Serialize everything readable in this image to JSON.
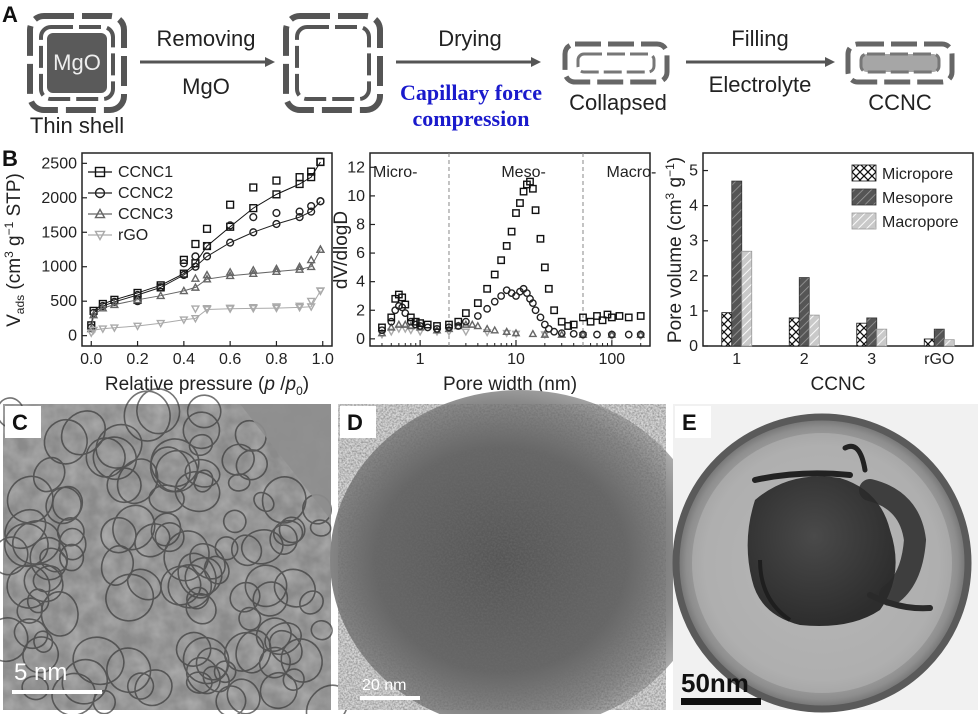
{
  "panel_labels": {
    "a": "A",
    "b": "B",
    "c": "C",
    "d": "D",
    "e": "E"
  },
  "scheme": {
    "mgo": "MgO",
    "thin_shell": "Thin shell",
    "step1_top": "Removing",
    "step1_bottom": "MgO",
    "step2_top": "Drying",
    "step2_blue1": "Capillary force",
    "step2_blue2": "compression",
    "collapsed": "Collapsed",
    "step3_top": "Filling",
    "step3_bottom": "Electrolyte",
    "ccnc": "CCNC"
  },
  "tem": {
    "c_scale": "5 nm",
    "d_scale": "20 nm",
    "e_scale": "50nm"
  },
  "chart_data": [
    {
      "type": "line",
      "title": "",
      "xlabel": "Relative pressure (p /p0)",
      "ylabel": "Vads (cm3 g-1 STP)",
      "xlim": [
        0,
        1.0
      ],
      "ylim": [
        -150,
        2650
      ],
      "xticks": [
        "0.0",
        "0.2",
        "0.4",
        "0.6",
        "0.8",
        "1.0"
      ],
      "yticks": [
        "0",
        "500",
        "1000",
        "1500",
        "2000",
        "2500"
      ],
      "legend": [
        "CCNC1",
        "CCNC2",
        "CCNC3",
        "rGO"
      ],
      "series": [
        {
          "name": "CCNC1",
          "marker": "square",
          "x": [
            0,
            0.01,
            0.05,
            0.1,
            0.2,
            0.3,
            0.4,
            0.45,
            0.5,
            0.6,
            0.7,
            0.8,
            0.9,
            0.95,
            0.99
          ],
          "adsorption": [
            150,
            360,
            460,
            520,
            620,
            730,
            900,
            1050,
            1300,
            1580,
            1850,
            2050,
            2200,
            2300,
            2520
          ],
          "desorption": [
            2520,
            2380,
            2300,
            2250,
            2150,
            1900,
            1550,
            1330,
            1100,
            700,
            520
          ]
        },
        {
          "name": "CCNC2",
          "marker": "circle",
          "x": [
            0,
            0.01,
            0.05,
            0.1,
            0.2,
            0.3,
            0.4,
            0.45,
            0.5,
            0.6,
            0.7,
            0.8,
            0.9,
            0.95,
            0.99
          ],
          "adsorption": [
            120,
            330,
            430,
            490,
            590,
            700,
            880,
            1000,
            1150,
            1350,
            1500,
            1620,
            1720,
            1800,
            1950
          ],
          "desorption": [
            1950,
            1880,
            1800,
            1780,
            1720,
            1600,
            1300,
            1150,
            1050,
            700,
            500
          ]
        },
        {
          "name": "CCNC3",
          "marker": "triangle-up",
          "x": [
            0,
            0.01,
            0.05,
            0.1,
            0.2,
            0.3,
            0.4,
            0.45,
            0.5,
            0.6,
            0.7,
            0.8,
            0.9,
            0.95,
            0.99
          ],
          "adsorption": [
            100,
            300,
            400,
            450,
            520,
            580,
            650,
            700,
            820,
            870,
            900,
            930,
            960,
            1000,
            1250
          ],
          "desorption": [
            1250,
            1100,
            1000,
            970,
            950,
            920,
            880,
            830
          ]
        },
        {
          "name": "rGO",
          "marker": "triangle-down",
          "x": [
            0,
            0.01,
            0.05,
            0.1,
            0.2,
            0.3,
            0.4,
            0.45,
            0.5,
            0.6,
            0.7,
            0.8,
            0.9,
            0.95,
            0.99
          ],
          "adsorption": [
            40,
            80,
            100,
            115,
            140,
            180,
            230,
            250,
            380,
            390,
            395,
            400,
            410,
            420,
            650
          ],
          "desorption": [
            650,
            500,
            430,
            420,
            410,
            400,
            395,
            390
          ]
        }
      ]
    },
    {
      "type": "scatter",
      "xlabel": "Pore width (nm)",
      "ylabel": "dV/dlogD",
      "xscale": "log",
      "xlim": [
        0.3,
        250
      ],
      "ylim": [
        -0.5,
        13
      ],
      "xticks": [
        "1",
        "10",
        "100"
      ],
      "yticks": [
        "0",
        "2",
        "4",
        "6",
        "8",
        "10",
        "12"
      ],
      "regions": [
        "Micro-",
        "Meso-",
        "Macro-"
      ],
      "boundaries": [
        2,
        50
      ],
      "series": [
        {
          "name": "CCNC1",
          "marker": "square",
          "x": [
            0.4,
            0.5,
            0.55,
            0.6,
            0.65,
            0.7,
            0.8,
            0.9,
            1.0,
            1.2,
            1.5,
            2.0,
            2.5,
            3,
            4,
            5,
            6,
            7,
            8,
            9,
            10,
            11,
            12,
            13,
            14,
            15,
            16,
            18,
            20,
            22,
            25,
            30,
            35,
            40,
            50,
            60,
            70,
            80,
            90,
            100,
            120,
            150,
            200
          ],
          "y": [
            0.8,
            1.5,
            2.8,
            3.1,
            2.9,
            2.4,
            1.5,
            1.2,
            1.1,
            1.0,
            0.9,
            1.0,
            1.2,
            1.8,
            2.5,
            3.5,
            4.5,
            5.5,
            6.5,
            7.5,
            8.8,
            9.5,
            10.3,
            10.8,
            11.0,
            10.5,
            9.0,
            7.0,
            5.0,
            3.5,
            2.0,
            1.2,
            0.9,
            1.0,
            1.5,
            1.2,
            1.6,
            1.3,
            1.7,
            1.5,
            1.6,
            1.5,
            1.6
          ]
        },
        {
          "name": "CCNC2",
          "marker": "circle",
          "x": [
            0.4,
            0.5,
            0.55,
            0.6,
            0.65,
            0.7,
            0.8,
            0.9,
            1.0,
            1.2,
            1.5,
            2.0,
            2.5,
            3,
            4,
            5,
            6,
            7,
            8,
            9,
            10,
            11,
            12,
            13,
            14,
            15,
            16,
            18,
            20,
            22,
            25,
            30,
            40,
            50,
            70,
            100,
            150,
            200
          ],
          "y": [
            0.6,
            1.2,
            2.0,
            2.3,
            2.2,
            1.8,
            1.2,
            1.0,
            0.9,
            0.8,
            0.7,
            0.8,
            0.9,
            1.2,
            1.6,
            2.1,
            2.6,
            3.0,
            3.4,
            3.2,
            3.0,
            3.3,
            3.5,
            3.2,
            2.8,
            2.5,
            2.0,
            1.5,
            1.0,
            0.7,
            0.5,
            0.4,
            0.35,
            0.3,
            0.3,
            0.3,
            0.3,
            0.3
          ]
        },
        {
          "name": "CCNC3",
          "marker": "triangle-up",
          "x": [
            0.4,
            0.5,
            0.6,
            0.7,
            0.8,
            1.0,
            1.5,
            2.0,
            2.5,
            3,
            3.5,
            4,
            5,
            6,
            8,
            10,
            15,
            20,
            30,
            50,
            100,
            200
          ],
          "y": [
            0.4,
            0.8,
            1.0,
            1.0,
            0.9,
            0.8,
            0.6,
            0.7,
            0.9,
            1.0,
            1.0,
            0.9,
            0.7,
            0.6,
            0.5,
            0.4,
            0.35,
            0.3,
            0.3,
            0.3,
            0.3,
            0.3
          ]
        },
        {
          "name": "rGO",
          "marker": "triangle-down",
          "x": [
            0.4,
            0.5,
            0.6,
            0.7,
            0.8,
            1.0,
            1.5,
            2.0,
            3,
            5,
            8,
            10,
            20,
            50,
            100,
            200
          ],
          "y": [
            0.3,
            0.5,
            0.7,
            0.7,
            0.6,
            0.5,
            0.5,
            0.5,
            0.5,
            0.45,
            0.4,
            0.35,
            0.3,
            0.25,
            0.2,
            0.2
          ]
        }
      ]
    },
    {
      "type": "bar",
      "xlabel": "CCNC",
      "ylabel": "Pore volume (cm3 g-1)",
      "categories": [
        "1",
        "2",
        "3",
        "rGO"
      ],
      "ylim": [
        0,
        5.5
      ],
      "yticks": [
        "0",
        "1",
        "2",
        "3",
        "4",
        "5"
      ],
      "series": [
        {
          "name": "Micropore",
          "values": [
            0.95,
            0.8,
            0.65,
            0.2
          ]
        },
        {
          "name": "Mesopore",
          "values": [
            4.7,
            1.95,
            0.8,
            0.48
          ]
        },
        {
          "name": "Macropore",
          "values": [
            2.7,
            0.88,
            0.48,
            0.18
          ]
        }
      ]
    }
  ]
}
